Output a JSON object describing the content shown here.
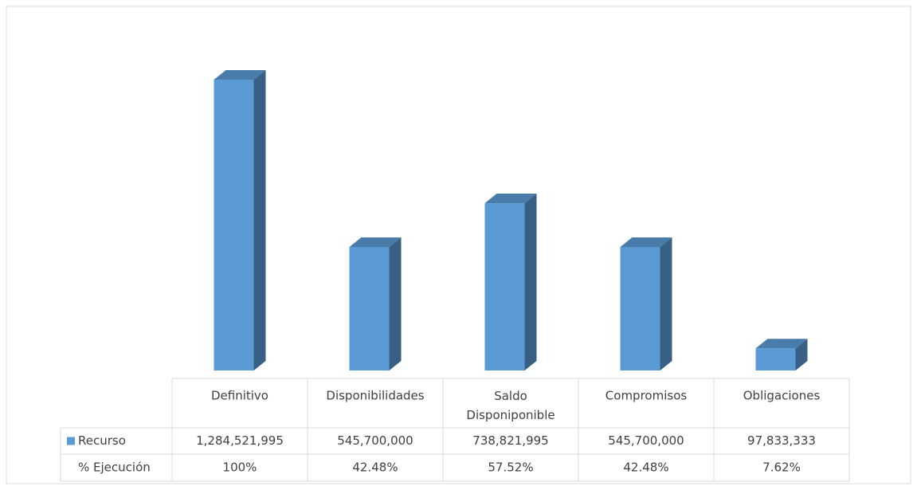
{
  "chart_data": {
    "type": "bar",
    "categories": [
      "Definitivo",
      "Disponibilidades",
      "Saldo Disponiponible",
      "Compromisos",
      "Obligaciones"
    ],
    "series": [
      {
        "name": "Recurso",
        "color": "#5b9bd5",
        "values": [
          1284521995,
          545700000,
          738821995,
          545700000,
          97833333
        ],
        "value_labels": [
          "1,284,521,995",
          "545,700,000",
          "738,821,995",
          "545,700,000",
          "97,833,333"
        ]
      }
    ],
    "table_rows": [
      {
        "name": "% Ejecución",
        "values": [
          100,
          42.48,
          57.52,
          42.48,
          7.62
        ],
        "value_labels": [
          "100%",
          "42.48%",
          "57.52%",
          "42.48%",
          "7.62%"
        ]
      }
    ]
  }
}
